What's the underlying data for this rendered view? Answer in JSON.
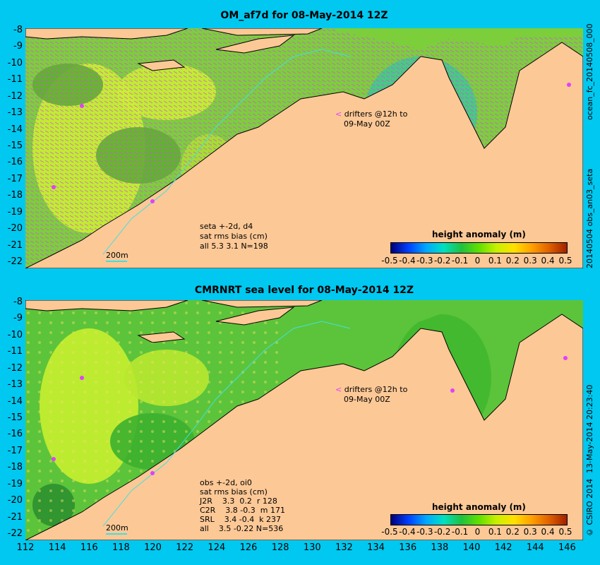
{
  "top_panel": {
    "title": "OM_af7d for 08-May-2014 12Z",
    "drifters_line1": "drifters @12h to",
    "drifters_line2": "09-May 00Z",
    "stats_line1": "seta +-2d, d4",
    "stats_line2": "sat rms bias (cm)",
    "stats_line3": "all 5.3 3.1 N=198",
    "scale_label": "200m",
    "colorbar_title": "height anomaly (m)",
    "side_label_right": "ocean_fc_20140508_000",
    "side_label_bottom": "20140504 obs_an03_seta"
  },
  "bottom_panel": {
    "title": "CMRNRT sea level  for 08-May-2014 12Z",
    "drifters_line1": "drifters @12h to",
    "drifters_line2": "09-May 00Z",
    "stats_lines": [
      "obs +-2d, oi0",
      "sat rms bias (cm)",
      "J2R    3.3  0.2  r 128",
      "C2R    3.8 -0.3  m 171",
      "SRL    3.4 -0.4  k 237",
      "all    3.5 -0.22 N=536"
    ],
    "scale_label": "200m",
    "colorbar_title": "height anomaly (m)",
    "side_label": "13-May-2014 20:23:40",
    "credit": "© CSIRO 2014"
  },
  "chart_data": {
    "type": "heatmap",
    "x_ticks": [
      "112",
      "114",
      "116",
      "118",
      "120",
      "122",
      "124",
      "126",
      "128",
      "130",
      "132",
      "134",
      "136",
      "138",
      "140",
      "142",
      "144",
      "146"
    ],
    "y_ticks": [
      "-8",
      "-9",
      "-10",
      "-11",
      "-12",
      "-13",
      "-14",
      "-15",
      "-16",
      "-17",
      "-18",
      "-19",
      "-20",
      "-21",
      "-22"
    ],
    "colorbar_ticks": [
      "-0.5",
      "-0.4",
      "-0.3",
      "-0.2",
      "-0.1",
      "0",
      "0.1",
      "0.2",
      "0.3",
      "0.4",
      "0.5"
    ],
    "xlim": [
      112,
      147
    ],
    "ylim": [
      -22,
      -8
    ],
    "colorbar_range": [
      -0.5,
      0.5
    ]
  },
  "colors": {
    "background": "#00c8f0",
    "land": "#fcc896",
    "sea_base": "#7ccf3a",
    "vectors": "#e040ff"
  }
}
